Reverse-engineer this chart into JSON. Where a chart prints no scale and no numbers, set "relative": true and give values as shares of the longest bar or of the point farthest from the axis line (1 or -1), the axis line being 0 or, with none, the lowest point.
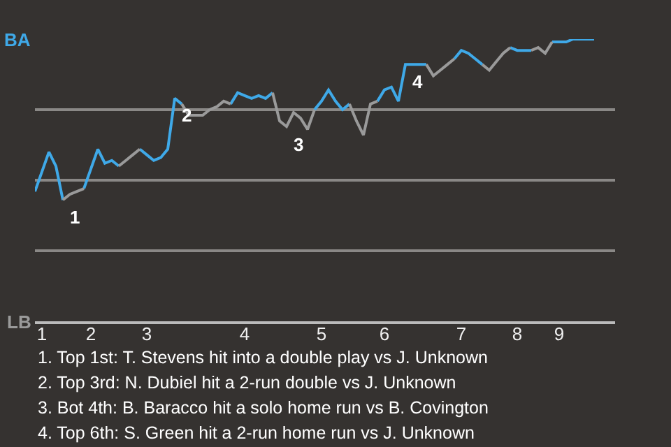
{
  "chart_data": {
    "type": "line",
    "relative": true,
    "grid": "y",
    "categories": [
      null,
      "1",
      null,
      null,
      null,
      null,
      null,
      null,
      "2",
      null,
      null,
      null,
      null,
      null,
      null,
      null,
      "3",
      null,
      null,
      null,
      null,
      null,
      null,
      null,
      null,
      null,
      null,
      null,
      null,
      null,
      "4",
      null,
      null,
      null,
      null,
      null,
      null,
      null,
      null,
      null,
      null,
      "5",
      null,
      null,
      null,
      null,
      null,
      null,
      null,
      null,
      "6",
      null,
      null,
      null,
      null,
      null,
      null,
      null,
      null,
      null,
      null,
      "7",
      null,
      null,
      null,
      null,
      null,
      null,
      null,
      "8",
      null,
      null,
      null,
      null,
      null,
      "9",
      null,
      null,
      null,
      null,
      null,
      null,
      null,
      null
    ],
    "series": [
      {
        "color": "#3fa9e8",
        "values": [
          0.46,
          0.53,
          0.6,
          0.55,
          0.43,
          null,
          null,
          0.47,
          0.54,
          0.61,
          0.56,
          0.57,
          0.55,
          null,
          null,
          0.61,
          0.59,
          0.57,
          0.58,
          0.61,
          0.79,
          0.77,
          null,
          null,
          null,
          null,
          null,
          null,
          0.77,
          0.81,
          0.8,
          0.79,
          0.8,
          0.79,
          0.81,
          null,
          null,
          null,
          null,
          null,
          0.75,
          0.78,
          0.82,
          0.78,
          0.75,
          0.77,
          null,
          null,
          null,
          0.78,
          0.82,
          0.83,
          0.78,
          0.91,
          0.91,
          0.91,
          0.91,
          null,
          null,
          null,
          0.93,
          0.96,
          0.95,
          0.93,
          0.91,
          null,
          null,
          null,
          0.97,
          0.96,
          0.96,
          0.96,
          null,
          null,
          0.99,
          0.99,
          0.99,
          1,
          1,
          1,
          1,
          null,
          null,
          null
        ]
      },
      {
        "color": "#9a9a9a",
        "values": [
          null,
          null,
          null,
          null,
          0.43,
          0.45,
          0.46,
          0.47,
          null,
          null,
          null,
          null,
          0.55,
          0.57,
          0.59,
          0.61,
          null,
          null,
          null,
          null,
          null,
          0.77,
          0.73,
          0.73,
          0.73,
          0.75,
          0.76,
          0.78,
          0.77,
          null,
          null,
          null,
          null,
          null,
          0.81,
          0.71,
          0.69,
          0.74,
          0.72,
          0.68,
          0.75,
          null,
          null,
          null,
          null,
          0.77,
          0.71,
          0.66,
          0.77,
          0.78,
          null,
          null,
          null,
          null,
          null,
          null,
          0.91,
          0.87,
          0.89,
          0.91,
          0.93,
          null,
          null,
          null,
          0.91,
          0.89,
          0.92,
          0.95,
          0.97,
          null,
          null,
          0.96,
          0.97,
          0.95,
          0.99,
          null,
          null,
          null,
          null,
          null,
          null,
          null,
          null,
          null
        ]
      }
    ],
    "annotations": [
      {
        "text": "1",
        "y": 0.43
      },
      {
        "text": "2",
        "y": 0.79
      },
      {
        "text": "3",
        "y": 0.69
      },
      {
        "text": "4",
        "y": 0.91
      },
      "BA",
      "LB",
      "1. Top 1st: T. Stevens hit into a double play vs J. Unknown",
      "2. Top 3rd: N. Dubiel hit a 2-run double vs J. Unknown",
      "3. Bot 4th: B. Baracco hit a solo home run vs B. Covington",
      "4. Top 6th: S. Green hit a 2-run home run vs J. Unknown"
    ]
  }
}
